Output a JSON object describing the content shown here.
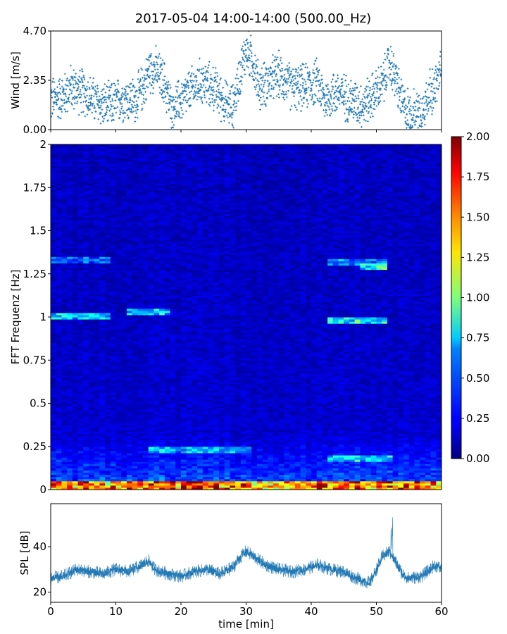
{
  "title": "2017-05-04 14:00-14:00 (500.00_Hz)",
  "chart_data": [
    {
      "type": "scatter",
      "ylabel": "Wind [m/s]",
      "yticks": [
        "0.00",
        "2.35",
        "4.70"
      ],
      "xlim": [
        0,
        60
      ],
      "ylim": [
        0,
        4.7
      ],
      "marker": "+",
      "color": "#1f77b4",
      "series": [
        {
          "x": [
            0,
            2,
            3,
            5,
            7,
            9,
            11,
            13,
            14.5,
            15,
            16,
            17.5,
            18.5,
            20,
            22,
            23,
            25,
            27,
            28,
            29,
            30,
            31,
            32,
            33,
            35,
            37,
            39,
            41,
            42,
            44,
            46,
            48,
            50,
            51,
            52,
            53,
            54,
            55,
            57,
            58,
            59,
            60
          ],
          "y": [
            1.4,
            1.6,
            2.0,
            1.8,
            1.3,
            1.1,
            1.5,
            1.4,
            2.2,
            2.8,
            2.9,
            2.2,
            1.0,
            1.4,
            2.0,
            2.3,
            2.0,
            1.2,
            1.1,
            2.6,
            3.8,
            3.3,
            2.0,
            2.2,
            2.6,
            2.0,
            2.0,
            2.3,
            1.4,
            1.8,
            1.4,
            1.2,
            1.8,
            2.2,
            3.2,
            2.4,
            1.2,
            0.8,
            0.9,
            1.6,
            2.0,
            2.8
          ]
        }
      ]
    },
    {
      "type": "heatmap",
      "ylabel": "FFT Frequenz [Hz]",
      "yticks": [
        "0",
        "0.25",
        "0.5",
        "0.75",
        "1",
        "1.25",
        "1.5",
        "1.75",
        "2"
      ],
      "xlim": [
        0,
        60
      ],
      "ylim": [
        0,
        2
      ],
      "colormap": "jet",
      "colorbar": {
        "ticks": [
          "0.00",
          "0.25",
          "0.50",
          "0.75",
          "1.00",
          "1.25",
          "1.50",
          "1.75",
          "2.00"
        ],
        "range": [
          0,
          2
        ]
      },
      "features": [
        {
          "t": [
            0,
            9
          ],
          "f": 1.0,
          "value": 0.8
        },
        {
          "t": [
            11,
            18
          ],
          "f": 1.02,
          "value": 0.75
        },
        {
          "t": [
            42,
            51
          ],
          "f": 0.98,
          "value": 0.85
        },
        {
          "t": [
            47,
            51
          ],
          "f": 1.29,
          "value": 0.95
        },
        {
          "t": [
            0,
            9
          ],
          "f": 1.33,
          "value": 0.55
        },
        {
          "t": [
            42,
            51
          ],
          "f": 1.31,
          "value": 0.6
        },
        {
          "t": [
            15,
            30
          ],
          "f": 0.22,
          "value": 0.7
        },
        {
          "t": [
            42,
            52
          ],
          "f": 0.18,
          "value": 0.8
        }
      ]
    },
    {
      "type": "line",
      "xlabel": "time [min]",
      "ylabel": "SPL [dB]",
      "yticks": [
        "20",
        "40"
      ],
      "xticks": [
        "0",
        "10",
        "20",
        "30",
        "40",
        "50",
        "60"
      ],
      "xlim": [
        0,
        60
      ],
      "ylim": [
        15.5,
        59
      ],
      "color": "#1f77b4",
      "series": [
        {
          "x": [
            0,
            2,
            4,
            6,
            8,
            10,
            12,
            14,
            15,
            16,
            18,
            20,
            22,
            24,
            26,
            28,
            29,
            30,
            31,
            33,
            35,
            37,
            39,
            41,
            43,
            45,
            47,
            49,
            50,
            51,
            52,
            53,
            54,
            55,
            57,
            59,
            60
          ],
          "y": [
            26,
            27,
            30,
            29,
            28,
            30,
            29,
            32,
            34,
            30,
            28,
            27,
            29,
            30,
            28,
            31,
            35,
            38,
            36,
            32,
            30,
            29,
            30,
            32,
            30,
            29,
            26,
            24,
            30,
            36,
            38,
            33,
            28,
            26,
            27,
            32,
            30
          ]
        }
      ]
    }
  ]
}
